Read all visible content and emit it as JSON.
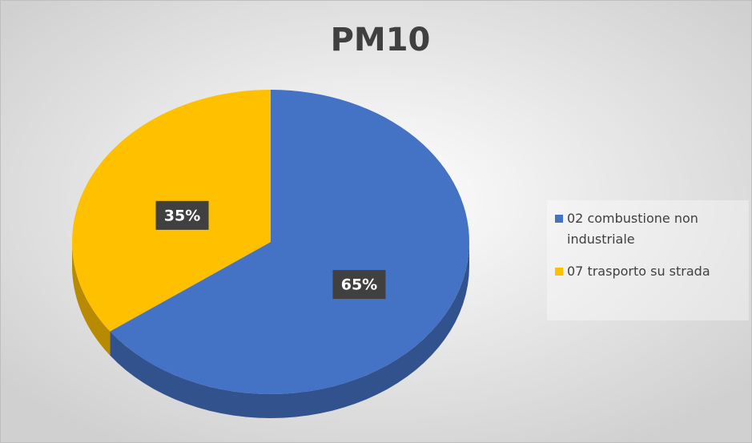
{
  "chart_data": {
    "type": "pie",
    "title": "PM10",
    "categories": [
      "02 combustione non industriale",
      "07 trasporto su strada"
    ],
    "values": [
      65,
      35
    ],
    "value_labels": [
      "65%",
      "35%"
    ],
    "colors": [
      "#4472c4",
      "#ffc000"
    ],
    "legend": "right"
  }
}
